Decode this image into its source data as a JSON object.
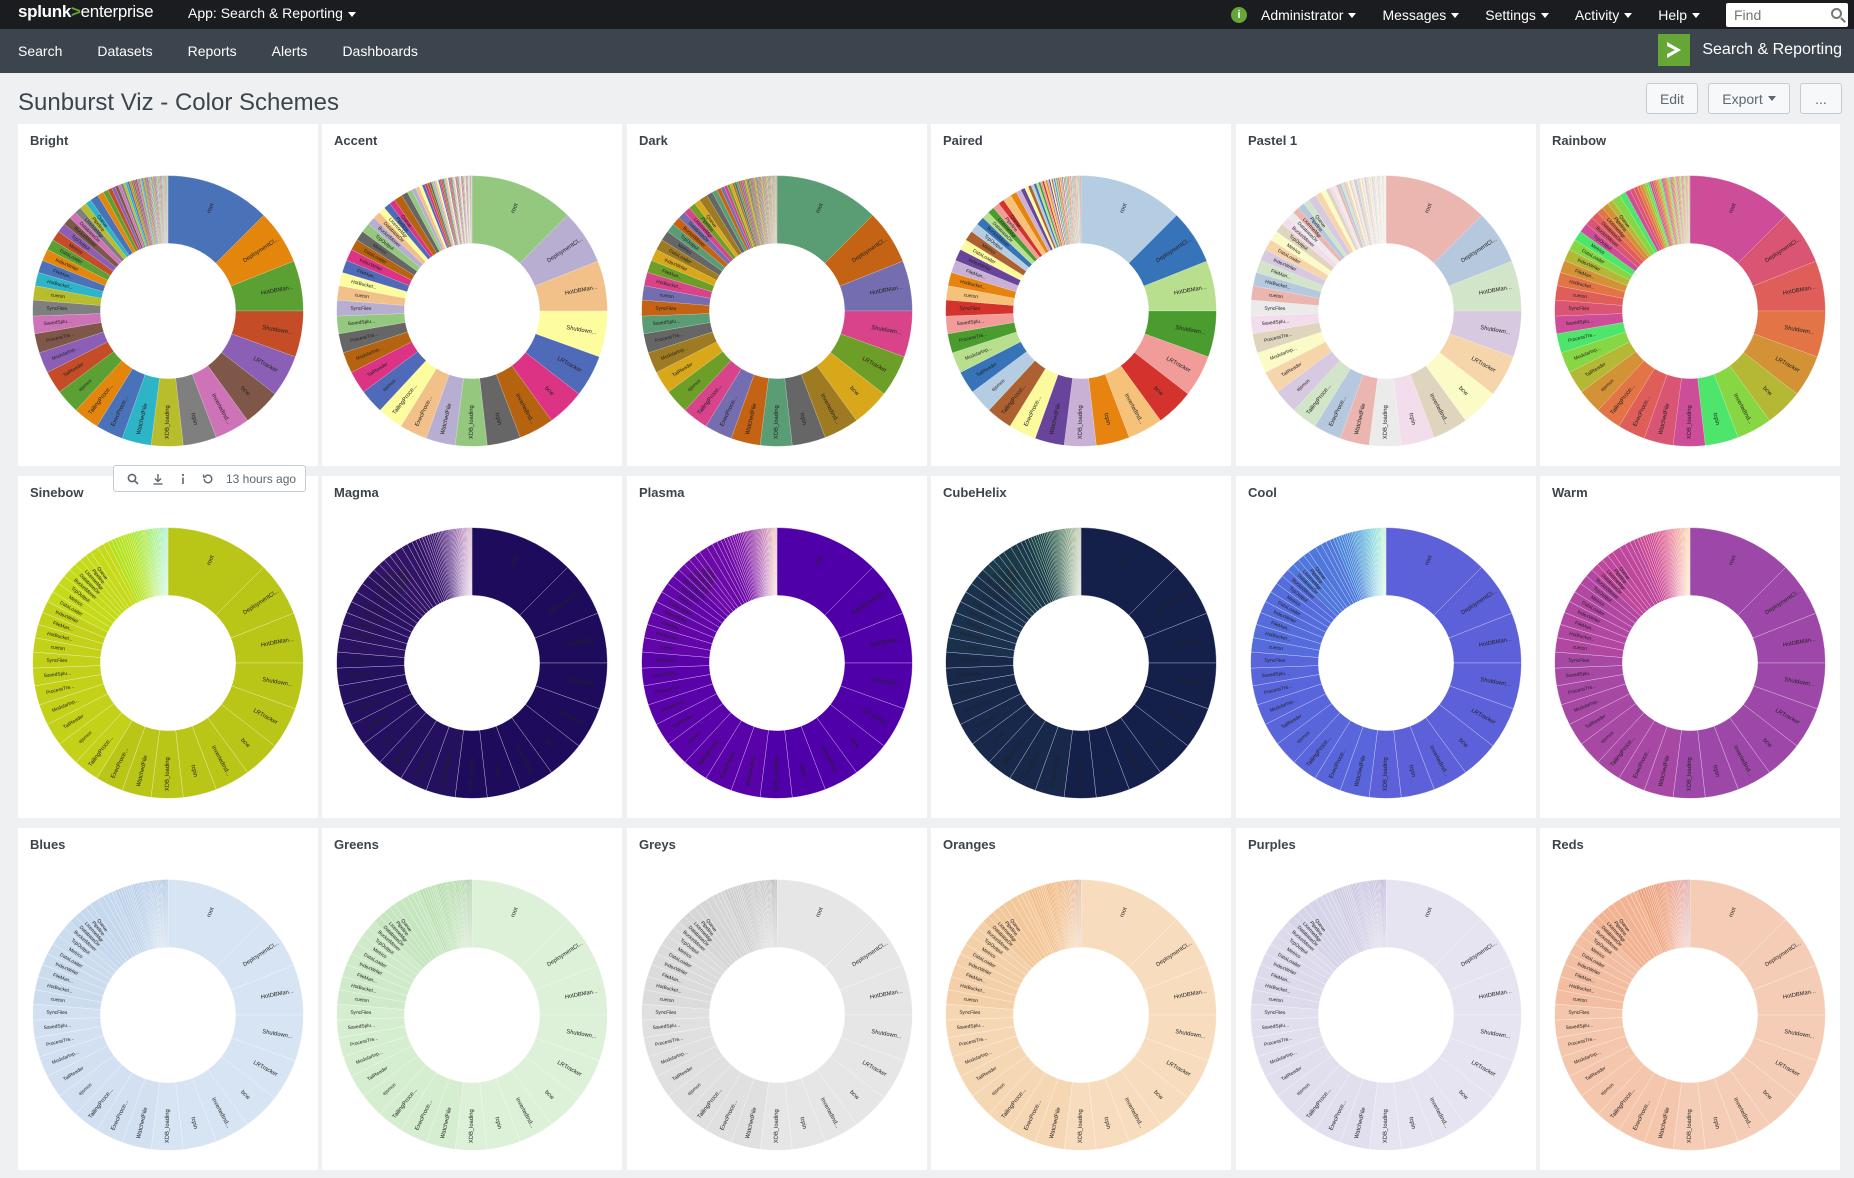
{
  "topbar": {
    "logo_brand": "splunk",
    "logo_sep": ">",
    "logo_product": "enterprise",
    "app_menu": "App: Search & Reporting",
    "health_icon": "i",
    "items": [
      "Administrator",
      "Messages",
      "Settings",
      "Activity",
      "Help"
    ],
    "find_placeholder": "Find"
  },
  "nav": {
    "items": [
      "Search",
      "Datasets",
      "Reports",
      "Alerts",
      "Dashboards"
    ],
    "app_title": "Search & Reporting"
  },
  "dashboard": {
    "title": "Sunburst Viz - Color Schemes",
    "edit_label": "Edit",
    "export_label": "Export",
    "more_label": "..."
  },
  "panel_toolbar": {
    "time_label": "13 hours ago"
  },
  "segment_labels": [
    "root",
    "DeploymentCl...",
    "HotDBMan...",
    "Shutdown...",
    "LRTracker",
    "bcw",
    "InvertedInd...",
    "tcpin",
    "XDB_loading",
    "WatchedFile",
    "ExecProce...",
    "TailingProce...",
    "ejsmon",
    "TailReader",
    "ModularInp...",
    "ProcessTra...",
    "SavedSplu...",
    "SyncFiles",
    "cueton",
    "HotBucket...",
    "FileMan...",
    "IndexWriter",
    "DataLoader",
    "Metrics",
    "TcpOutput",
    "BucketMover",
    "DatabaseDir",
    "LicenseMgr",
    "Pipeline",
    "Queue"
  ],
  "panels": [
    {
      "title": "Bright",
      "scheme": "bright",
      "colors": [
        "#4a72b8",
        "#e4850c",
        "#5ba033",
        "#c44c27",
        "#8a5fb5",
        "#7e5748",
        "#cf73b9",
        "#7f7f7f",
        "#b8bd2b",
        "#2db4c7"
      ]
    },
    {
      "title": "Accent",
      "scheme": "accent",
      "colors": [
        "#93c87e",
        "#b8aed2",
        "#f1c189",
        "#fdfda0",
        "#4e6ab8",
        "#dd3385",
        "#b6630f",
        "#666666"
      ]
    },
    {
      "title": "Dark",
      "scheme": "dark",
      "colors": [
        "#5a9d75",
        "#c36313",
        "#746db0",
        "#d8438a",
        "#6d9e27",
        "#d8a81a",
        "#9e7b22",
        "#666666"
      ]
    },
    {
      "title": "Paired",
      "scheme": "paired",
      "colors": [
        "#b5cde3",
        "#3773b8",
        "#b7df8e",
        "#4a9c2f",
        "#f19c98",
        "#d4332d",
        "#f6c27a",
        "#e7840f",
        "#c9b1d6",
        "#68449a",
        "#fbfb9d",
        "#ad6030"
      ]
    },
    {
      "title": "Pastel 1",
      "scheme": "pastel1",
      "colors": [
        "#ebb6b0",
        "#b5c8dd",
        "#d2e5c8",
        "#d6c9e0",
        "#f7d5ab",
        "#fbfbc8",
        "#dfd4be",
        "#f3dcec",
        "#ebebeb"
      ]
    },
    {
      "title": "Rainbow",
      "scheme": "rainbow",
      "colors": [
        "#cd4d99",
        "#d95573",
        "#e05e5a",
        "#e27445",
        "#d39236",
        "#b4b834",
        "#86d743",
        "#4de56c"
      ]
    },
    {
      "title": "Sinebow",
      "scheme": "sinebow",
      "colors": [
        "#b9c617",
        "#c3d119",
        "#c5db19",
        "#b4e21d",
        "#9ee623",
        "#7ae631",
        "#58e548",
        "#3bdf71"
      ]
    },
    {
      "title": "Magma",
      "scheme": "magma",
      "colors": [
        "#1e0b5c",
        "#24105f",
        "#2b1263",
        "#321467",
        "#3b1770",
        "#4a1d79",
        "#5c2585",
        "#702d8e",
        "#86388f",
        "#a44c89"
      ]
    },
    {
      "title": "Plasma",
      "scheme": "plasma",
      "colors": [
        "#5000a8",
        "#5a02aa",
        "#6206aa",
        "#6b0aa8",
        "#770fa6",
        "#8419a0",
        "#922597",
        "#a2348b",
        "#b84a78",
        "#d26a5e"
      ]
    },
    {
      "title": "CubeHelix",
      "scheme": "cubehelix",
      "colors": [
        "#15204a",
        "#17284b",
        "#19314c",
        "#1a3a4a",
        "#1c4546",
        "#205041",
        "#285c3b",
        "#376838",
        "#4d7338",
        "#6c7b3e"
      ]
    },
    {
      "title": "Cool",
      "scheme": "cool",
      "colors": [
        "#5c60d9",
        "#5865db",
        "#546cdc",
        "#5077dc",
        "#4a86da",
        "#4598d5",
        "#3ea9cf",
        "#3cbdc6",
        "#42d0b3",
        "#6ae292"
      ]
    },
    {
      "title": "Warm",
      "scheme": "warm",
      "colors": [
        "#9d48a8",
        "#a748a5",
        "#b247a2",
        "#bf479c",
        "#cc4993",
        "#d84d86",
        "#e35678",
        "#ea6467",
        "#ee7a55",
        "#f29a44"
      ]
    },
    {
      "title": "Blues",
      "scheme": "blues",
      "colors": [
        "#d7e4f3",
        "#d2e0f1",
        "#ccdcef",
        "#c6d8ed",
        "#bdd2ea",
        "#b0c9e6",
        "#a2c0e2",
        "#8eb1da",
        "#709ccf",
        "#4a7dbd"
      ]
    },
    {
      "title": "Greens",
      "scheme": "greens",
      "colors": [
        "#dcf1d7",
        "#d6eed0",
        "#cfeac8",
        "#c6e6bf",
        "#bbe1b3",
        "#acd9a3",
        "#9bd090",
        "#86c479",
        "#6ab35f",
        "#478f3f"
      ]
    },
    {
      "title": "Greys",
      "scheme": "greys",
      "colors": [
        "#e6e6e6",
        "#e0e0e0",
        "#dbdbdb",
        "#d6d6d6",
        "#cecece",
        "#c4c4c4",
        "#b8b8b8",
        "#a6a6a6",
        "#8e8e8e",
        "#5e5e5e"
      ]
    },
    {
      "title": "Oranges",
      "scheme": "oranges",
      "colors": [
        "#f7ddbd",
        "#f5d7b4",
        "#f4d0a8",
        "#f3c99c",
        "#f1bf8b",
        "#efb173",
        "#eca25d",
        "#e58e43",
        "#d8782b",
        "#b95b16"
      ]
    },
    {
      "title": "Purples",
      "scheme": "purples",
      "colors": [
        "#e6e4f0",
        "#e1dfee",
        "#dcdaeb",
        "#d6d4e8",
        "#cfcce4",
        "#c5c1de",
        "#b9b3d6",
        "#a99fcb",
        "#9286bd",
        "#6d55a4"
      ]
    },
    {
      "title": "Reds",
      "scheme": "reds",
      "colors": [
        "#f5cdb6",
        "#f4c6ac",
        "#f2bda0",
        "#f1b392",
        "#ee a37e",
        "#eb9470",
        "#e6815f",
        "#dd6b4f",
        "#cf5340",
        "#b33530"
      ]
    }
  ]
}
